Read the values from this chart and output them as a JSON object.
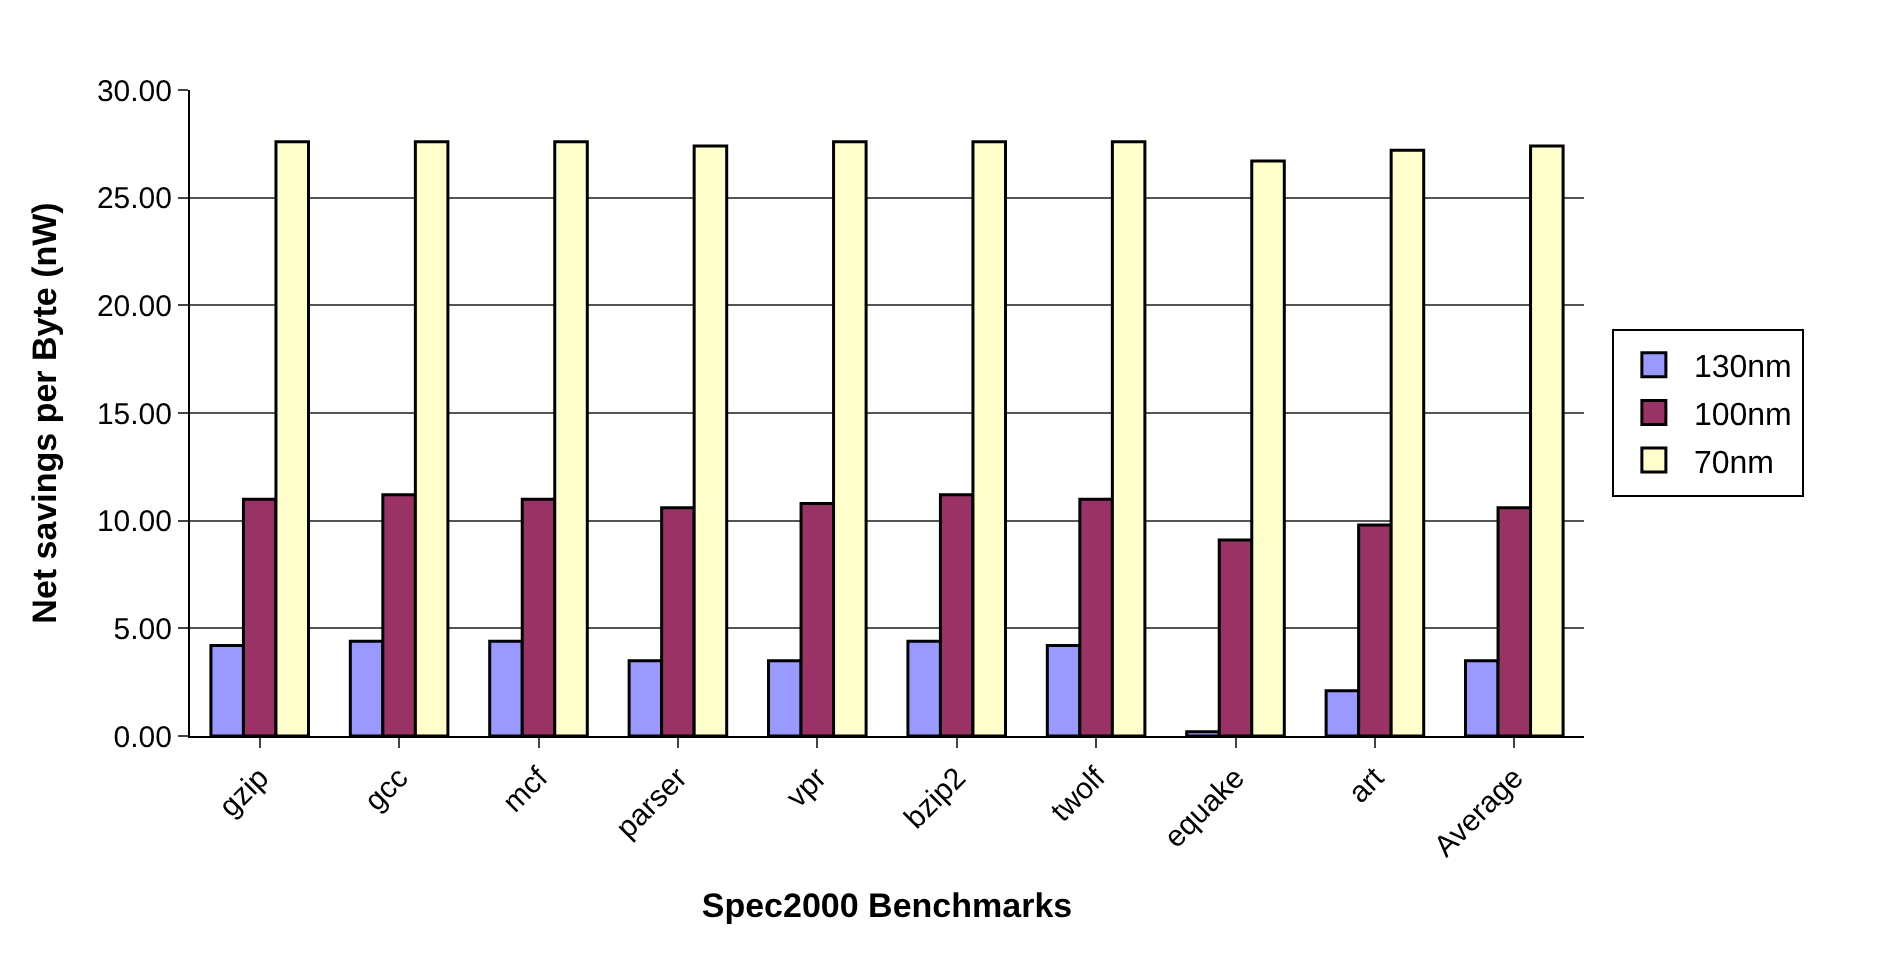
{
  "chart_data": {
    "type": "bar",
    "xlabel": "Spec2000 Benchmarks",
    "ylabel": "Net savings per Byte (nW)",
    "categories": [
      "gzip",
      "gcc",
      "mcf",
      "parser",
      "vpr",
      "bzip2",
      "twolf",
      "equake",
      "art",
      "Average"
    ],
    "series": [
      {
        "name": "130nm",
        "color": "#9999ff",
        "values": [
          4.2,
          4.4,
          4.4,
          3.5,
          3.5,
          4.4,
          4.2,
          0.2,
          2.1,
          3.5
        ]
      },
      {
        "name": "100nm",
        "color": "#993366",
        "values": [
          11.0,
          11.2,
          11.0,
          10.6,
          10.8,
          11.2,
          11.0,
          9.1,
          9.8,
          10.6
        ]
      },
      {
        "name": "70nm",
        "color": "#ffffcc",
        "values": [
          27.6,
          27.6,
          27.6,
          27.4,
          27.6,
          27.6,
          27.6,
          26.7,
          27.2,
          27.4
        ]
      }
    ],
    "ylim": [
      0,
      30
    ],
    "yticks": [
      {
        "value": 0,
        "label": "0.00"
      },
      {
        "value": 5,
        "label": "5.00"
      },
      {
        "value": 10,
        "label": "10.00"
      },
      {
        "value": 15,
        "label": "15.00"
      },
      {
        "value": 20,
        "label": "20.00"
      },
      {
        "value": 25,
        "label": "25.00"
      },
      {
        "value": 30,
        "label": "30.00"
      }
    ],
    "grid": "y",
    "legend": "right"
  }
}
